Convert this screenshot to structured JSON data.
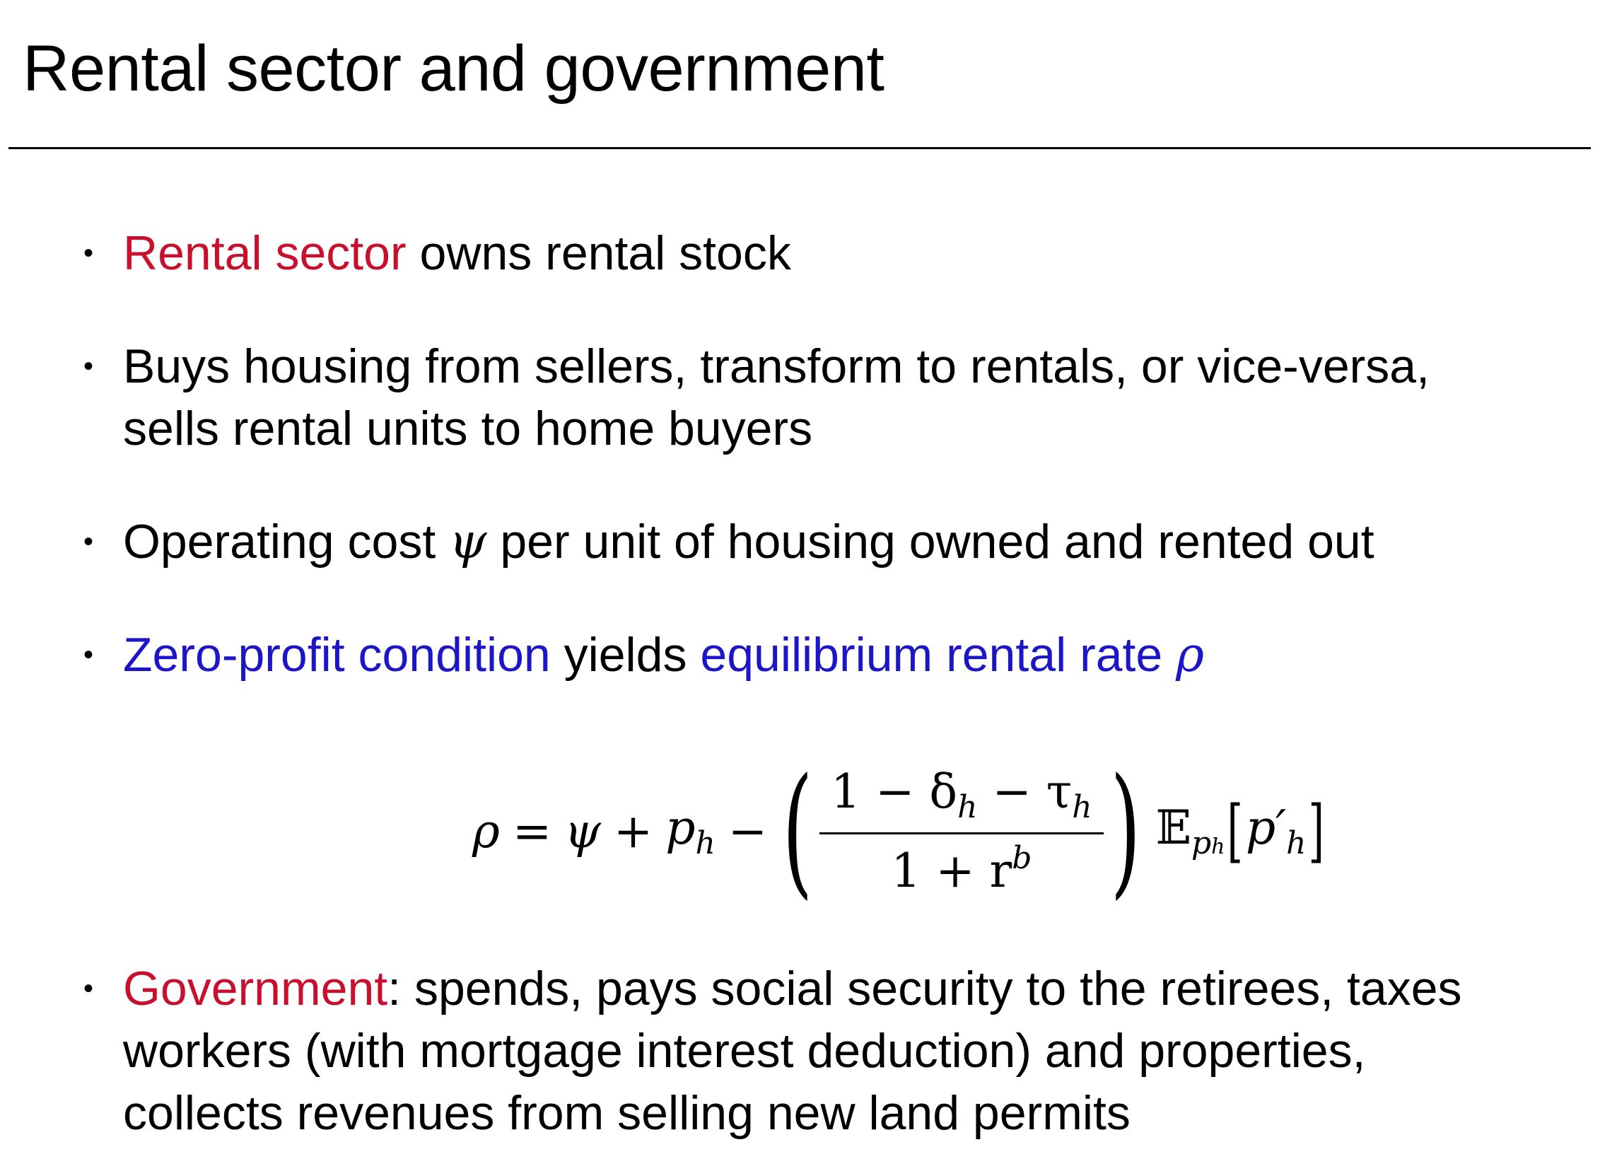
{
  "title": "Rental sector and government",
  "bullets": [
    {
      "parts": [
        {
          "text": "Rental sector",
          "color": "#c8102e"
        },
        {
          "text": " owns rental stock"
        }
      ]
    },
    {
      "lines": [
        "Buys housing from sellers, transform to rentals, or vice-versa,",
        "sells rental units to home buyers"
      ]
    },
    {
      "parts": [
        {
          "text": "Operating cost "
        },
        {
          "text": "ψ",
          "math": true
        },
        {
          "text": " per unit of housing owned and rented out"
        }
      ]
    },
    {
      "parts": [
        {
          "text": "Zero-profit condition",
          "color": "#1c16c8"
        },
        {
          "text": " yields "
        },
        {
          "text": "equilibrium rental rate ",
          "color": "#1c16c8"
        },
        {
          "text": "ρ",
          "math": true,
          "color": "#1c16c8"
        }
      ]
    },
    {
      "parts": [
        {
          "text": "Government",
          "color": "#c8102e"
        },
        {
          "text": ": spends, pays social security to the retirees, taxes"
        }
      ],
      "lines": [
        "workers (with mortgage interest deduction) and properties,",
        "collects revenues from selling new land permits"
      ]
    }
  ],
  "equation": {
    "lhs": "ρ",
    "eq": "=",
    "t1": "ψ",
    "plus": "+",
    "t2": "p",
    "t2_sub": "h",
    "minus": "−",
    "num": "1 − δ",
    "num_sub1": "h",
    "num_minus": " − τ",
    "num_sub2": "h",
    "den": "1 + r",
    "den_sup": "b",
    "expect": "𝔼",
    "expect_sub": "p",
    "expect_sub_sub": "h",
    "arg": "p′",
    "arg_sub": "h"
  }
}
